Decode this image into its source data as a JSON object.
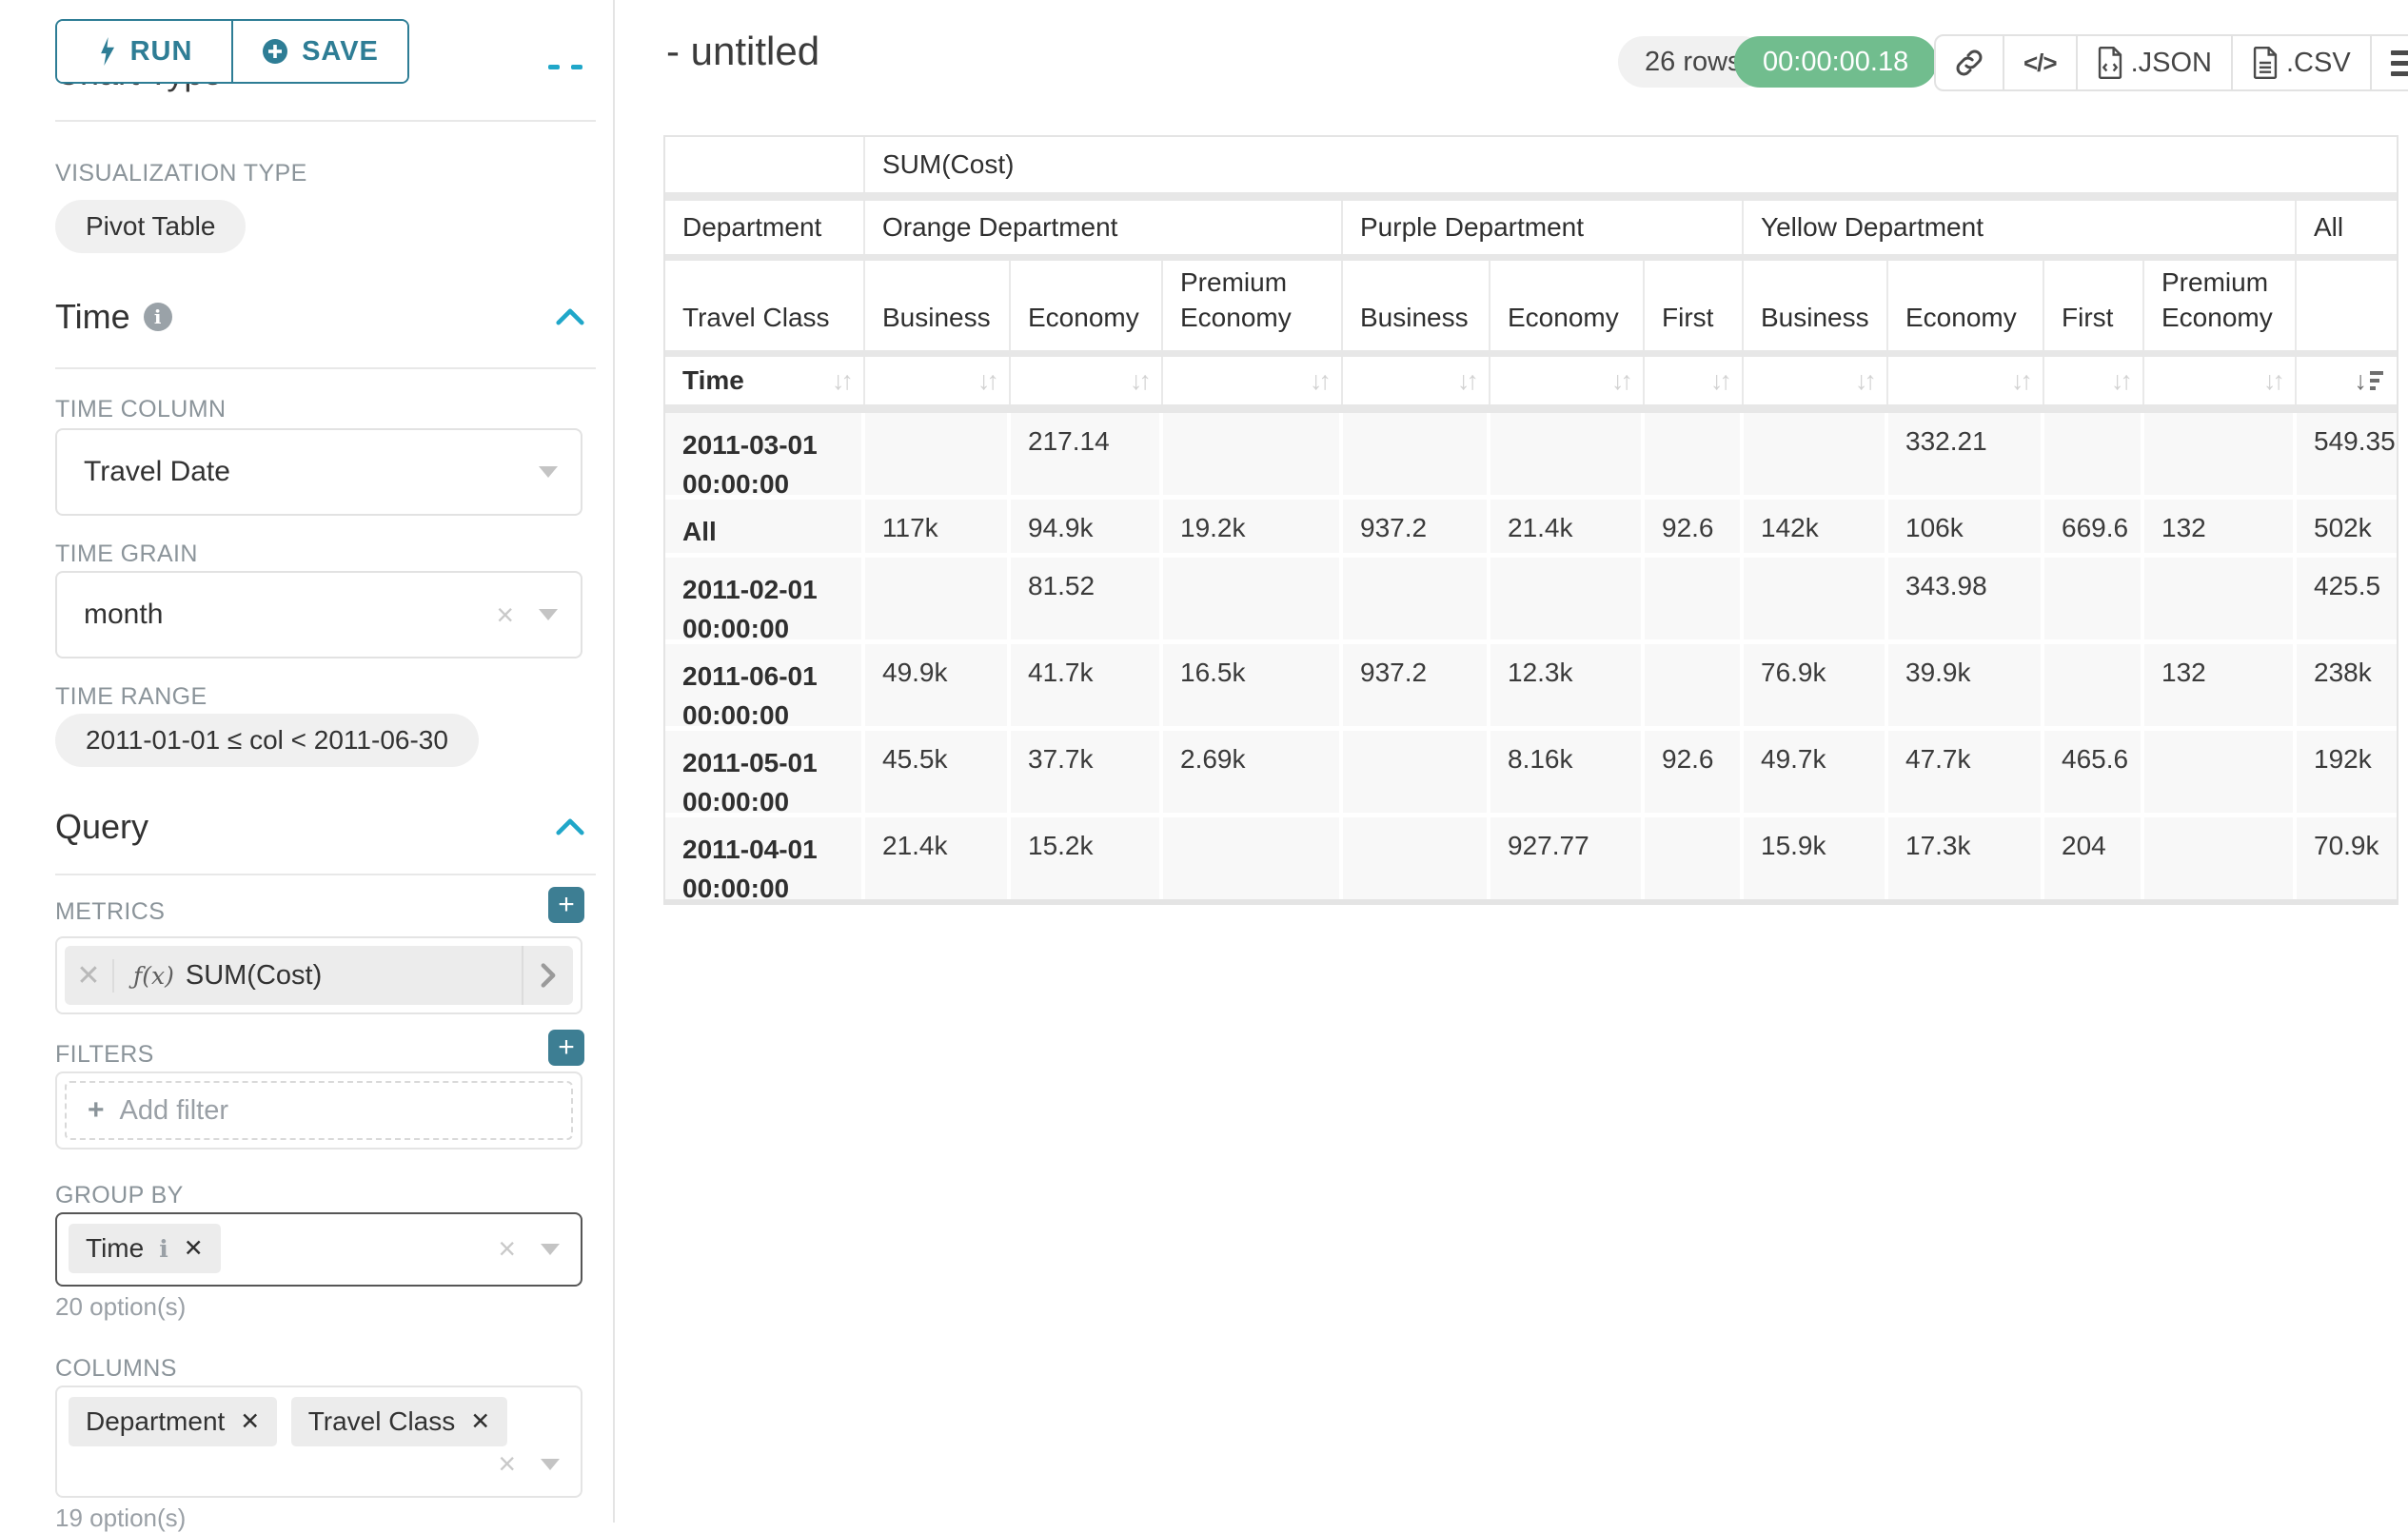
{
  "colors": {
    "primary": "#2e7d95",
    "accent": "#20a7c9",
    "success": "#71bd8e"
  },
  "toolbar": {
    "run_label": "RUN",
    "save_label": "SAVE"
  },
  "sidebar": {
    "chart_type_heading": "Chart Type",
    "viz_type_label": "VISUALIZATION TYPE",
    "viz_type_value": "Pivot Table",
    "time_heading": "Time",
    "time_column_label": "TIME COLUMN",
    "time_column_value": "Travel Date",
    "time_grain_label": "TIME GRAIN",
    "time_grain_value": "month",
    "time_range_label": "TIME RANGE",
    "time_range_value": "2011-01-01 ≤ col < 2011-06-30",
    "query_heading": "Query",
    "metrics_label": "METRICS",
    "metric_fx": "ƒ(x)",
    "metric_value": "SUM(Cost)",
    "filters_label": "FILTERS",
    "add_filter_label": "Add filter",
    "group_by_label": "GROUP BY",
    "group_by_chips": [
      "Time"
    ],
    "group_by_options": "20 option(s)",
    "columns_label": "COLUMNS",
    "columns_chips": [
      "Department",
      "Travel Class"
    ],
    "columns_options": "19 option(s)"
  },
  "main": {
    "title": "- untitled",
    "rows_badge": "26 rows",
    "timer_badge": "00:00:00.18",
    "json_label": ".JSON",
    "csv_label": ".CSV"
  },
  "pivot": {
    "metric_header": "SUM(Cost)",
    "row_dim_label": "Department",
    "col_dim_label": "Travel Class",
    "time_label": "Time",
    "groups": [
      {
        "label": "Orange Department",
        "cols": [
          "Business",
          "Economy",
          "Premium Economy"
        ]
      },
      {
        "label": "Purple Department",
        "cols": [
          "Business",
          "Economy",
          "First"
        ]
      },
      {
        "label": "Yellow Department",
        "cols": [
          "Business",
          "Economy",
          "First",
          "Premium Economy"
        ]
      },
      {
        "label": "All",
        "cols": [
          ""
        ]
      }
    ],
    "rows": [
      {
        "label": "2011-03-01 00:00:00",
        "values": [
          "",
          "217.14",
          "",
          "",
          "",
          "",
          "",
          "332.21",
          "",
          "",
          "549.35"
        ]
      },
      {
        "label": "All",
        "values": [
          "117k",
          "94.9k",
          "19.2k",
          "937.2",
          "21.4k",
          "92.6",
          "142k",
          "106k",
          "669.6",
          "132",
          "502k"
        ]
      },
      {
        "label": "2011-02-01 00:00:00",
        "values": [
          "",
          "81.52",
          "",
          "",
          "",
          "",
          "",
          "343.98",
          "",
          "",
          "425.5"
        ]
      },
      {
        "label": "2011-06-01 00:00:00",
        "values": [
          "49.9k",
          "41.7k",
          "16.5k",
          "937.2",
          "12.3k",
          "",
          "76.9k",
          "39.9k",
          "",
          "132",
          "238k"
        ]
      },
      {
        "label": "2011-05-01 00:00:00",
        "values": [
          "45.5k",
          "37.7k",
          "2.69k",
          "",
          "8.16k",
          "92.6",
          "49.7k",
          "47.7k",
          "465.6",
          "",
          "192k"
        ]
      },
      {
        "label": "2011-04-01 00:00:00",
        "values": [
          "21.4k",
          "15.2k",
          "",
          "",
          "927.77",
          "",
          "15.9k",
          "17.3k",
          "204",
          "",
          "70.9k"
        ]
      }
    ]
  }
}
